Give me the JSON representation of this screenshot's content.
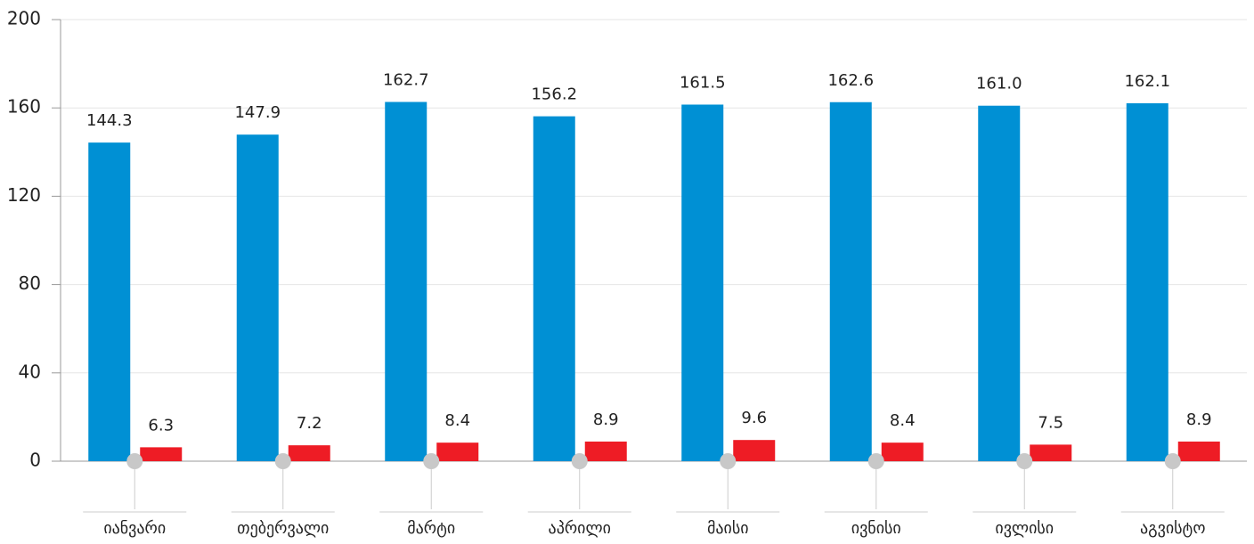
{
  "chart_data": {
    "type": "bar",
    "categories": [
      "იანვარი",
      "თებერვალი",
      "მარტი",
      "აპრილი",
      "მაისი",
      "ივნისი",
      "ივლისი",
      "აგვისტო"
    ],
    "series": [
      {
        "color": "#0090d4",
        "values": [
          144.3,
          147.9,
          162.7,
          156.2,
          161.5,
          162.6,
          161.0,
          162.1
        ],
        "value_labels": [
          "144.3",
          "147.9",
          "162.7",
          "156.2",
          "161.5",
          "162.6",
          "161.0",
          "162.1"
        ]
      },
      {
        "color": "#ee1c25",
        "values": [
          6.3,
          7.2,
          8.4,
          8.9,
          9.6,
          8.4,
          7.5,
          8.9
        ],
        "value_labels": [
          "6.3",
          "7.2",
          "8.4",
          "8.9",
          "9.6",
          "8.4",
          "7.5",
          "8.9"
        ]
      }
    ],
    "ylim": [
      0,
      200
    ],
    "yticks": [
      0,
      40,
      80,
      120,
      160,
      200
    ],
    "grid": true
  }
}
